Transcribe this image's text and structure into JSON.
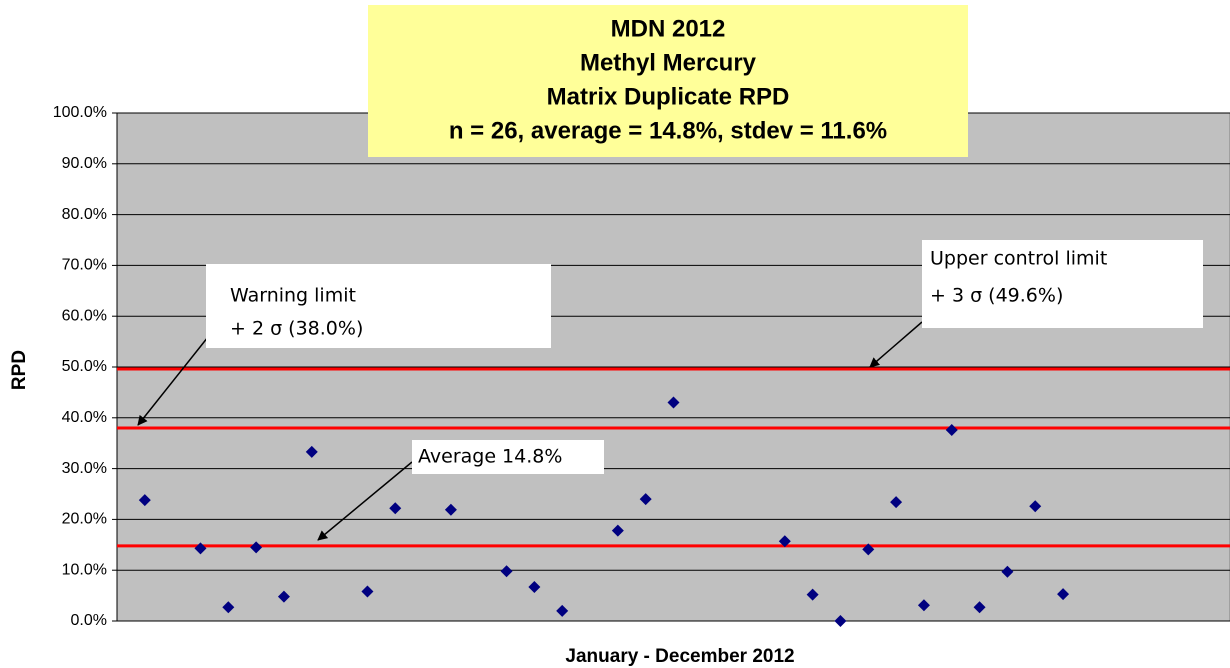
{
  "chart_data": {
    "type": "scatter",
    "title": [
      "MDN 2012",
      "Methyl Mercury",
      "Matrix Duplicate RPD",
      "n = 26, average = 14.8%, stdev = 11.6%"
    ],
    "x_label": "January - December 2012",
    "y_label": "RPD",
    "x": [
      1,
      3,
      4,
      5,
      6,
      7,
      9,
      10,
      12,
      14,
      15,
      16,
      18,
      19,
      20,
      24,
      25,
      26,
      27,
      28,
      29,
      30,
      31,
      32,
      33,
      34
    ],
    "values": [
      23.8,
      14.3,
      2.7,
      14.5,
      4.8,
      33.3,
      5.8,
      22.2,
      21.9,
      9.8,
      6.7,
      2.0,
      17.8,
      24.0,
      43.0,
      15.7,
      5.2,
      0.0,
      14.1,
      23.4,
      3.1,
      37.6,
      2.7,
      9.7,
      22.6,
      5.3
    ],
    "color": "#000080",
    "xlim": [
      0,
      40
    ],
    "ylim": [
      0,
      100
    ],
    "yticks": [
      {
        "value": 0,
        "label": "0.0%"
      },
      {
        "value": 10,
        "label": "10.0%"
      },
      {
        "value": 20,
        "label": "20.0%"
      },
      {
        "value": 30,
        "label": "30.0%"
      },
      {
        "value": 40,
        "label": "40.0%"
      },
      {
        "value": 50,
        "label": "50.0%"
      },
      {
        "value": 60,
        "label": "60.0%"
      },
      {
        "value": 70,
        "label": "70.0%"
      },
      {
        "value": 80,
        "label": "80.0%"
      },
      {
        "value": 90,
        "label": "90.0%"
      },
      {
        "value": 100,
        "label": "100.0%"
      }
    ],
    "grid": true,
    "reference_lines": [
      {
        "value": 14.8,
        "label": [
          "Average 14.8%"
        ],
        "color": "#ff0000"
      },
      {
        "value": 38.0,
        "label": [
          "Warning limit",
          "+ 2 σ (38.0%)"
        ],
        "color": "#ff0000"
      },
      {
        "value": 49.6,
        "label": [
          "Upper control limit",
          "+ 3 σ (49.6%)"
        ],
        "color": "#ff0000"
      }
    ]
  }
}
